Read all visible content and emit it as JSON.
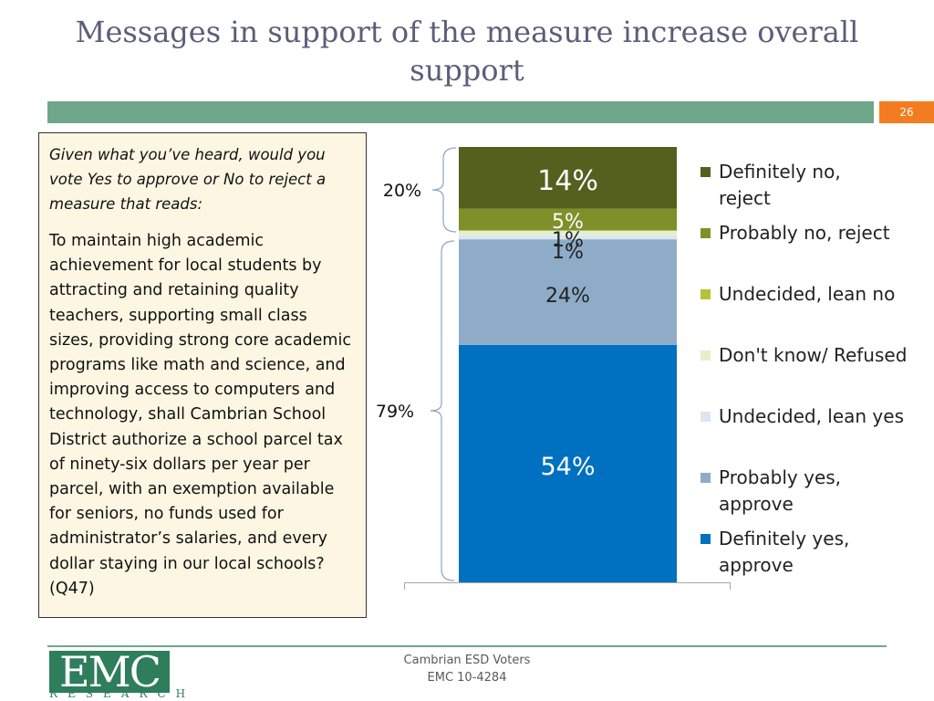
{
  "slide": {
    "title": "Messages in support of the measure increase overall support",
    "page_number": "26"
  },
  "question": {
    "prompt": "Given what you’ve heard, would you vote Yes to approve or No to reject a measure that reads:",
    "measure_text": "To maintain high academic achievement for local students by attracting and retaining quality teachers, supporting small class sizes, providing strong core academic programs like math and science, and improving access to computers and technology, shall Cambrian School District authorize a school parcel tax of ninety-six dollars per year per parcel, with an exemption available for seniors, no funds used for administrator’s salaries, and every dollar staying in our local schools? (Q47)"
  },
  "chart_data": {
    "type": "bar",
    "stacked": true,
    "ylim": [
      0,
      100
    ],
    "series": [
      {
        "name": "Definitely yes, approve",
        "value": 54,
        "label": "54%",
        "color": "#0070c0"
      },
      {
        "name": "Probably yes, approve",
        "value": 24,
        "label": "24%",
        "color": "#8eacc8"
      },
      {
        "name": "Undecided, lean yes",
        "value": 1,
        "label": "1%",
        "color": "#dce6f0"
      },
      {
        "name": "Don't know/ Refused",
        "value": 1,
        "label": "1%",
        "color": "#e6efc9"
      },
      {
        "name": "Undecided, lean no",
        "value": 0,
        "label": "",
        "color": "#b5c334"
      },
      {
        "name": "Probably no, reject",
        "value": 5,
        "label": "5%",
        "color": "#7f8f2a"
      },
      {
        "name": "Definitely no, reject",
        "value": 14,
        "label": "14%",
        "color": "#55601f"
      }
    ],
    "legend": [
      {
        "name": "Definitely no, reject",
        "color": "#55601f"
      },
      {
        "name": "Probably no, reject",
        "color": "#7f8f2a"
      },
      {
        "name": "Undecided, lean no",
        "color": "#b5c334"
      },
      {
        "name": "Don't know/ Refused",
        "color": "#e6efc9"
      },
      {
        "name": "Undecided, lean yes",
        "color": "#dce6f0"
      },
      {
        "name": "Probably yes, approve",
        "color": "#8eacc8"
      },
      {
        "name": "Definitely yes, approve",
        "color": "#0070c0"
      }
    ],
    "legend_position": "right",
    "brackets": [
      {
        "label": "20%",
        "group": "reject"
      },
      {
        "label": "79%",
        "group": "approve"
      }
    ]
  },
  "footer": {
    "line1": "Cambrian ESD Voters",
    "line2": "EMC 10-4284",
    "logo_text": "EMC",
    "logo_subtext": "RESEARCH"
  }
}
